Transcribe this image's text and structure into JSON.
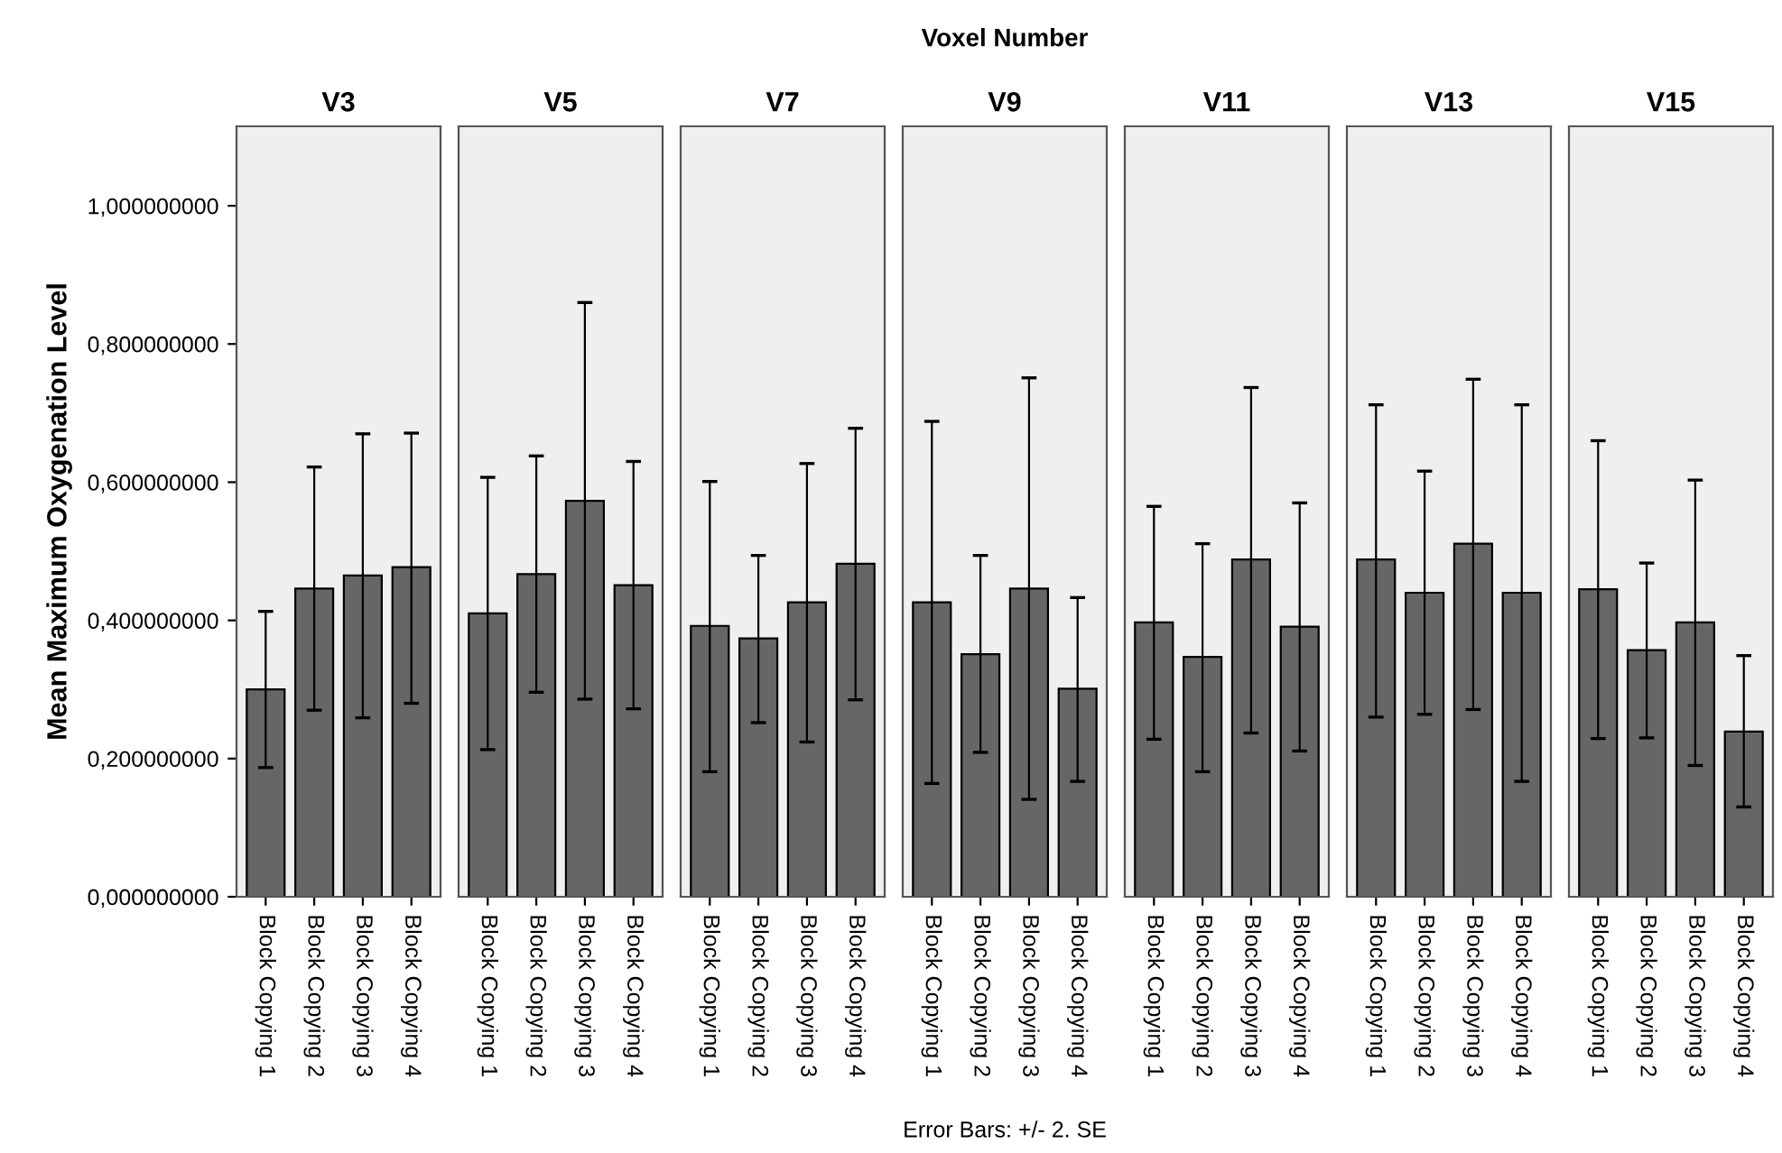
{
  "chart_data": [
    {
      "type": "bar",
      "title": "V3",
      "ylabel": "Mean Maximum Oxygenation Level",
      "annotations": [
        "Voxel Number",
        "Error Bars: +/- 2. SE"
      ],
      "categories": [
        "Block Copying 1",
        "Block Copying 2",
        "Block Copying 3",
        "Block Copying 4"
      ],
      "values": [
        0.3,
        0.446,
        0.465,
        0.477
      ],
      "errors": [
        [
          0.187,
          0.413
        ],
        [
          0.27,
          0.622
        ],
        [
          0.259,
          0.67
        ],
        [
          0.28,
          0.671
        ]
      ],
      "color": "#666666",
      "ylim": [
        0,
        1.115
      ],
      "yticks": [
        {
          "value": 0,
          "label": "0,000000000"
        },
        {
          "value": 0.2,
          "label": "0,200000000"
        },
        {
          "value": 0.4,
          "label": "0,400000000"
        },
        {
          "value": 0.6,
          "label": "0,600000000"
        },
        {
          "value": 0.8,
          "label": "0,800000000"
        },
        {
          "value": 1.0,
          "label": "1,000000000"
        }
      ]
    },
    {
      "type": "bar",
      "title": "V5",
      "tick_labels": "x",
      "categories": [
        "Block Copying 1",
        "Block Copying 2",
        "Block Copying 3",
        "Block Copying 4"
      ],
      "values": [
        0.41,
        0.467,
        0.573,
        0.451
      ],
      "errors": [
        [
          0.213,
          0.607
        ],
        [
          0.296,
          0.638
        ],
        [
          0.286,
          0.86
        ],
        [
          0.272,
          0.63
        ]
      ],
      "color": "#666666",
      "ylim": [
        0,
        1.115
      ]
    },
    {
      "type": "bar",
      "title": "V7",
      "tick_labels": "x",
      "categories": [
        "Block Copying 1",
        "Block Copying 2",
        "Block Copying 3",
        "Block Copying 4"
      ],
      "values": [
        0.392,
        0.374,
        0.426,
        0.482
      ],
      "errors": [
        [
          0.181,
          0.601
        ],
        [
          0.252,
          0.494
        ],
        [
          0.224,
          0.627
        ],
        [
          0.285,
          0.678
        ]
      ],
      "color": "#666666",
      "ylim": [
        0,
        1.115
      ]
    },
    {
      "type": "bar",
      "title": "V9",
      "tick_labels": "x",
      "categories": [
        "Block Copying 1",
        "Block Copying 2",
        "Block Copying 3",
        "Block Copying 4"
      ],
      "values": [
        0.426,
        0.351,
        0.446,
        0.301
      ],
      "errors": [
        [
          0.164,
          0.688
        ],
        [
          0.209,
          0.494
        ],
        [
          0.141,
          0.751
        ],
        [
          0.167,
          0.433
        ]
      ],
      "color": "#666666",
      "ylim": [
        0,
        1.115
      ]
    },
    {
      "type": "bar",
      "title": "V11",
      "tick_labels": "x",
      "categories": [
        "Block Copying 1",
        "Block Copying 2",
        "Block Copying 3",
        "Block Copying 4"
      ],
      "values": [
        0.397,
        0.347,
        0.488,
        0.391
      ],
      "errors": [
        [
          0.228,
          0.565
        ],
        [
          0.181,
          0.511
        ],
        [
          0.237,
          0.737
        ],
        [
          0.211,
          0.57
        ]
      ],
      "color": "#666666",
      "ylim": [
        0,
        1.115
      ]
    },
    {
      "type": "bar",
      "title": "V13",
      "tick_labels": "x",
      "categories": [
        "Block Copying 1",
        "Block Copying 2",
        "Block Copying 3",
        "Block Copying 4"
      ],
      "values": [
        0.488,
        0.44,
        0.511,
        0.44
      ],
      "errors": [
        [
          0.26,
          0.712
        ],
        [
          0.264,
          0.616
        ],
        [
          0.271,
          0.749
        ],
        [
          0.167,
          0.712
        ]
      ],
      "color": "#666666",
      "ylim": [
        0,
        1.115
      ]
    },
    {
      "type": "bar",
      "title": "V15",
      "tick_labels": "x",
      "categories": [
        "Block Copying 1",
        "Block Copying 2",
        "Block Copying 3",
        "Block Copying 4"
      ],
      "values": [
        0.445,
        0.357,
        0.397,
        0.239
      ],
      "errors": [
        [
          0.229,
          0.66
        ],
        [
          0.23,
          0.483
        ],
        [
          0.19,
          0.603
        ],
        [
          0.13,
          0.349
        ]
      ],
      "color": "#666666",
      "ylim": [
        0,
        1.115
      ]
    }
  ]
}
